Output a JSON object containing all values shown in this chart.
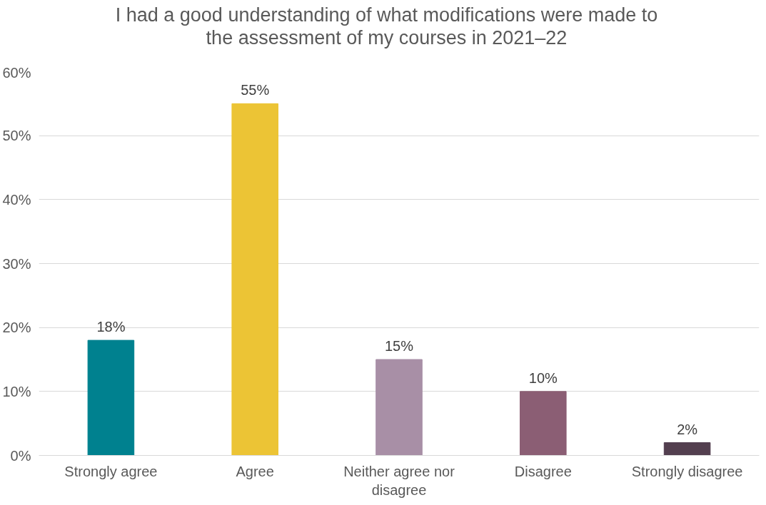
{
  "chart_data": {
    "type": "bar",
    "title": "I had a good understanding of what modifications were made to the assessment of my courses in 2021–22",
    "categories": [
      "Strongly agree",
      "Agree",
      "Neither agree nor disagree",
      "Disagree",
      "Strongly disagree"
    ],
    "values": [
      18,
      55,
      15,
      10,
      2
    ],
    "colors": [
      "#00818f",
      "#ecc435",
      "#a88fa6",
      "#8b5e74",
      "#533f4f"
    ],
    "ylim": [
      0,
      60
    ],
    "yticks": [
      {
        "value": 0,
        "label": "0%"
      },
      {
        "value": 10,
        "label": "10%"
      },
      {
        "value": 20,
        "label": "20%"
      },
      {
        "value": 30,
        "label": "30%"
      },
      {
        "value": 40,
        "label": "40%"
      },
      {
        "value": 50,
        "label": "50%"
      },
      {
        "value": 60,
        "label": "60%"
      }
    ],
    "value_labels": [
      "18%",
      "55%",
      "15%",
      "10%",
      "2%"
    ],
    "grid": "y"
  }
}
